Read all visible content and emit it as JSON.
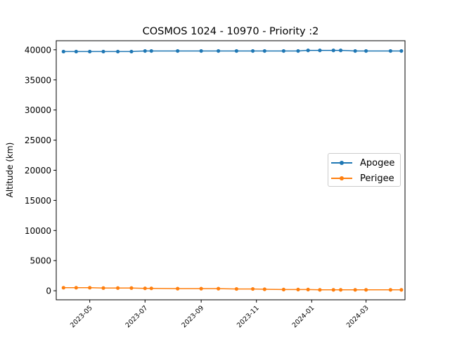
{
  "chart_data": {
    "type": "line",
    "title": "COSMOS 1024 - 10970 - Priority :2",
    "xlabel": "",
    "ylabel": "Altitude (km)",
    "xlim": [
      "2023-03-25",
      "2024-04-13"
    ],
    "ylim": [
      -1500,
      41500
    ],
    "y_ticks": [
      0,
      5000,
      10000,
      15000,
      20000,
      25000,
      30000,
      35000,
      40000
    ],
    "x_ticks": [
      "2023-05",
      "2023-07",
      "2023-09",
      "2023-11",
      "2024-01",
      "2024-03"
    ],
    "grid": false,
    "legend_position": "center-right",
    "series": [
      {
        "name": "Apogee",
        "color": "#1f77b4",
        "x": [
          "2023-04-02",
          "2023-04-16",
          "2023-05-01",
          "2023-05-16",
          "2023-06-01",
          "2023-06-16",
          "2023-07-01",
          "2023-07-08",
          "2023-08-06",
          "2023-09-01",
          "2023-09-20",
          "2023-10-10",
          "2023-10-28",
          "2023-11-10",
          "2023-12-01",
          "2023-12-17",
          "2023-12-28",
          "2024-01-10",
          "2024-01-25",
          "2024-02-02",
          "2024-02-18",
          "2024-03-01",
          "2024-03-28",
          "2024-04-09"
        ],
        "y": [
          39700,
          39700,
          39700,
          39700,
          39700,
          39700,
          39800,
          39800,
          39800,
          39800,
          39800,
          39800,
          39800,
          39800,
          39800,
          39800,
          39900,
          39900,
          39900,
          39900,
          39800,
          39800,
          39800,
          39800
        ]
      },
      {
        "name": "Perigee",
        "color": "#ff7f0e",
        "x": [
          "2023-04-02",
          "2023-04-16",
          "2023-05-01",
          "2023-05-16",
          "2023-06-01",
          "2023-06-16",
          "2023-07-01",
          "2023-07-08",
          "2023-08-06",
          "2023-09-01",
          "2023-09-20",
          "2023-10-10",
          "2023-10-28",
          "2023-11-10",
          "2023-12-01",
          "2023-12-17",
          "2023-12-28",
          "2024-01-10",
          "2024-01-25",
          "2024-02-02",
          "2024-02-18",
          "2024-03-01",
          "2024-03-28",
          "2024-04-09"
        ],
        "y": [
          500,
          500,
          500,
          450,
          450,
          450,
          400,
          400,
          350,
          350,
          350,
          300,
          300,
          250,
          200,
          200,
          200,
          150,
          150,
          150,
          150,
          150,
          150,
          150
        ]
      }
    ]
  }
}
